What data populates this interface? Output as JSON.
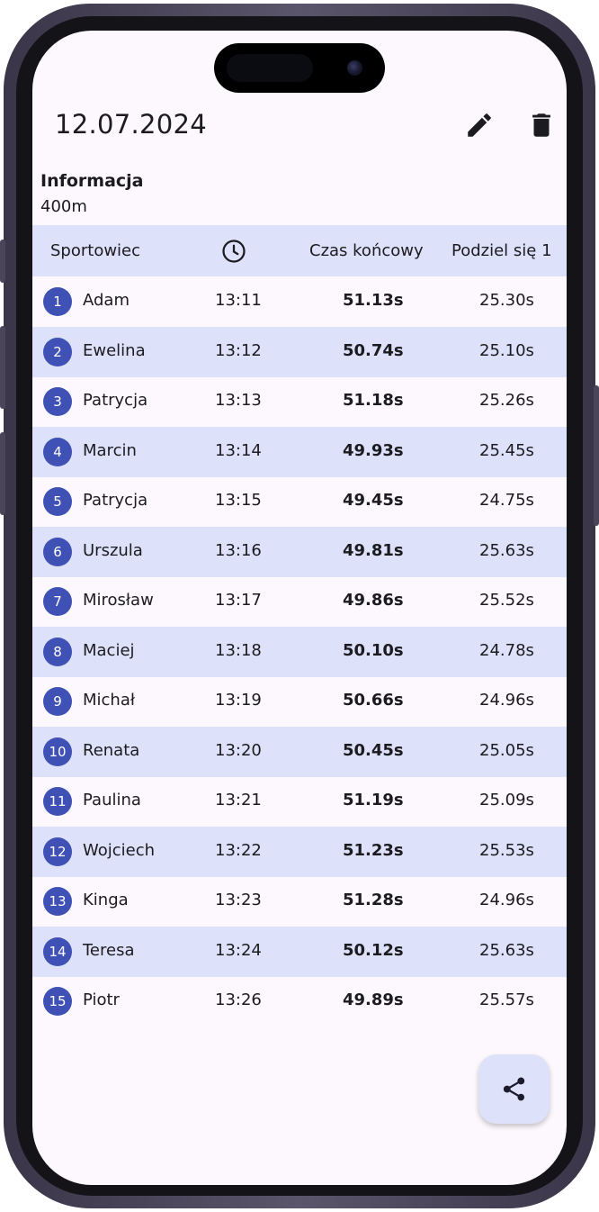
{
  "header": {
    "title": "12.07.2024",
    "edit_icon": "pencil-icon",
    "delete_icon": "trash-icon"
  },
  "info": {
    "label": "Informacja",
    "value": "400m"
  },
  "table": {
    "columns": {
      "athlete": "Sportowiec",
      "time_icon": "clock-icon",
      "final": "Czas końcowy",
      "split": "Podziel się 1"
    },
    "rows": [
      {
        "num": "1",
        "name": "Adam",
        "time": "13:11",
        "final": "51.13s",
        "split": "25.30s"
      },
      {
        "num": "2",
        "name": "Ewelina",
        "time": "13:12",
        "final": "50.74s",
        "split": "25.10s"
      },
      {
        "num": "3",
        "name": "Patrycja",
        "time": "13:13",
        "final": "51.18s",
        "split": "25.26s"
      },
      {
        "num": "4",
        "name": "Marcin",
        "time": "13:14",
        "final": "49.93s",
        "split": "25.45s"
      },
      {
        "num": "5",
        "name": "Patrycja",
        "time": "13:15",
        "final": "49.45s",
        "split": "24.75s"
      },
      {
        "num": "6",
        "name": "Urszula",
        "time": "13:16",
        "final": "49.81s",
        "split": "25.63s"
      },
      {
        "num": "7",
        "name": "Mirosław",
        "time": "13:17",
        "final": "49.86s",
        "split": "25.52s"
      },
      {
        "num": "8",
        "name": "Maciej",
        "time": "13:18",
        "final": "50.10s",
        "split": "24.78s"
      },
      {
        "num": "9",
        "name": "Michał",
        "time": "13:19",
        "final": "50.66s",
        "split": "24.96s"
      },
      {
        "num": "10",
        "name": "Renata",
        "time": "13:20",
        "final": "50.45s",
        "split": "25.05s"
      },
      {
        "num": "11",
        "name": "Paulina",
        "time": "13:21",
        "final": "51.19s",
        "split": "25.09s"
      },
      {
        "num": "12",
        "name": "Wojciech",
        "time": "13:22",
        "final": "51.23s",
        "split": "25.53s"
      },
      {
        "num": "13",
        "name": "Kinga",
        "time": "13:23",
        "final": "51.28s",
        "split": "24.96s"
      },
      {
        "num": "14",
        "name": "Teresa",
        "time": "13:24",
        "final": "50.12s",
        "split": "25.63s"
      },
      {
        "num": "15",
        "name": "Piotr",
        "time": "13:26",
        "final": "49.89s",
        "split": "25.57s"
      }
    ]
  },
  "fab": {
    "icon": "share-icon"
  },
  "colors": {
    "accent": "#3f51b5",
    "row_highlight": "#dde1fa",
    "background": "#fcf8fd",
    "text": "#1c1b1f"
  }
}
